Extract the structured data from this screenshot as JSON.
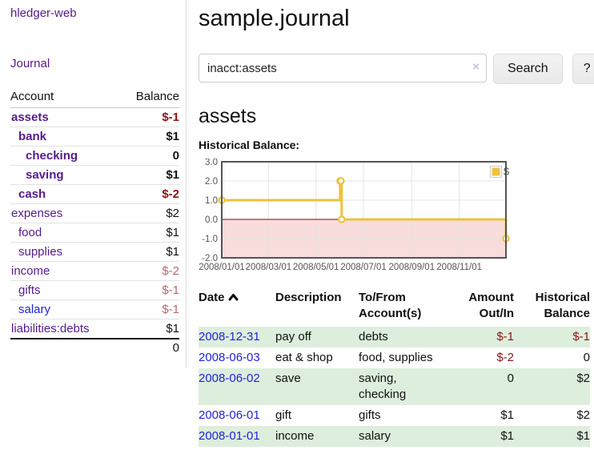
{
  "colors": {
    "accent_purple": "#551a8b",
    "link_blue": "#2222dd",
    "negative": "#8b1515",
    "negative_muted": "#b36a6a",
    "stripe_green": "#ddeedd",
    "series_gold": "#edc240"
  },
  "sidebar": {
    "brand": "hledger-web",
    "journal_link": "Journal",
    "accounts_table": {
      "headers": {
        "account": "Account",
        "balance": "Balance"
      },
      "rows": [
        {
          "name": "assets",
          "depth": 0,
          "bold": true,
          "balance": "$-1",
          "neg": "strong"
        },
        {
          "name": "bank",
          "depth": 1,
          "bold": true,
          "balance": "$1"
        },
        {
          "name": "checking",
          "depth": 2,
          "bold": true,
          "balance": "0"
        },
        {
          "name": "saving",
          "depth": 2,
          "bold": true,
          "balance": "$1"
        },
        {
          "name": "cash",
          "depth": 1,
          "bold": true,
          "balance": "$-2",
          "neg": "strong"
        },
        {
          "name": "expenses",
          "depth": 0,
          "bold": false,
          "balance": "$2"
        },
        {
          "name": "food",
          "depth": 1,
          "bold": false,
          "balance": "$1"
        },
        {
          "name": "supplies",
          "depth": 1,
          "bold": false,
          "balance": "$1"
        },
        {
          "name": "income",
          "depth": 0,
          "bold": false,
          "balance": "$-2",
          "neg": "muted"
        },
        {
          "name": "gifts",
          "depth": 1,
          "bold": false,
          "balance": "$-1",
          "neg": "muted"
        },
        {
          "name": "salary",
          "depth": 1,
          "bold": false,
          "balance": "$-1",
          "neg": "muted",
          "blue": true
        },
        {
          "name": "liabilities:debts",
          "depth": 0,
          "bold": false,
          "balance": "$1"
        }
      ],
      "total": "0"
    }
  },
  "main": {
    "title": "sample.journal",
    "search": {
      "value": "inacct:assets",
      "clear_icon": "×",
      "search_button": "Search",
      "help_button": "?"
    },
    "account_heading": "assets",
    "register": {
      "headers": {
        "date": "Date",
        "description": "Description",
        "accounts_line1": "To/From",
        "accounts_line2": "Account(s)",
        "amount_line1": "Amount",
        "amount_line2": "Out/In",
        "balance_line1": "Historical",
        "balance_line2": "Balance"
      },
      "rows": [
        {
          "date": "2008-12-31",
          "description": "pay off",
          "accounts": "debts",
          "amount": "$-1",
          "amount_neg": true,
          "balance": "$-1",
          "balance_neg": true
        },
        {
          "date": "2008-06-03",
          "description": "eat & shop",
          "accounts": "food, supplies",
          "amount": "$-2",
          "amount_neg": true,
          "balance": "0",
          "balance_neg": false
        },
        {
          "date": "2008-06-02",
          "description": "save",
          "accounts": "saving, checking",
          "amount": "0",
          "amount_neg": false,
          "balance": "$2",
          "balance_neg": false
        },
        {
          "date": "2008-06-01",
          "description": "gift",
          "accounts": "gifts",
          "amount": "$1",
          "amount_neg": false,
          "balance": "$2",
          "balance_neg": false
        },
        {
          "date": "2008-01-01",
          "description": "income",
          "accounts": "salary",
          "amount": "$1",
          "amount_neg": false,
          "balance": "$1",
          "balance_neg": false
        }
      ]
    }
  },
  "chart_data": {
    "type": "line",
    "steps": true,
    "title": "Historical Balance:",
    "legend_label": "$",
    "series": [
      {
        "name": "$",
        "color": "#edc240",
        "points": [
          [
            "2008-01-01",
            1
          ],
          [
            "2008-06-01",
            2
          ],
          [
            "2008-06-02",
            2
          ],
          [
            "2008-06-03",
            0
          ],
          [
            "2008-12-31",
            -1
          ]
        ]
      }
    ],
    "xlim": [
      "2008-01-01",
      "2008-12-31"
    ],
    "ylim": [
      -2,
      3
    ],
    "x_ticks": [
      "2008-01-01",
      "2008-03-01",
      "2008-05-01",
      "2008-07-01",
      "2008-09-01",
      "2008-11-01"
    ],
    "y_ticks": [
      3,
      2,
      1,
      0,
      -1,
      -2
    ],
    "negative_region_color": "#f9dcdc",
    "zero_line_color": "#8b0000",
    "grid_color": "#e4e4e4",
    "border_color": "#545454",
    "tick_label_color": "#545454"
  }
}
